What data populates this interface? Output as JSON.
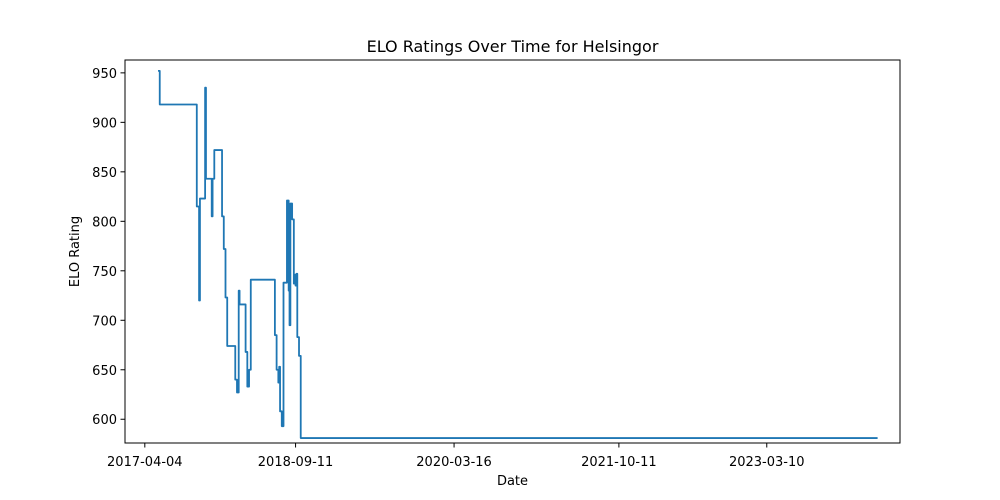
{
  "chart_data": {
    "type": "line",
    "title": "ELO Ratings Over Time for Helsingor",
    "xlabel": "Date",
    "ylabel": "ELO Rating",
    "x_ticks": [
      "2017-04-04",
      "2018-09-11",
      "2020-03-16",
      "2021-10-11",
      "2023-03-10"
    ],
    "y_ticks": [
      600,
      650,
      700,
      750,
      800,
      850,
      900,
      950
    ],
    "xlim": [
      "2017-01-25",
      "2024-06-16"
    ],
    "ylim": [
      576,
      963
    ],
    "grid": false,
    "series": [
      {
        "color": "#1f77b4",
        "points": [
          [
            "2017-05-20",
            952
          ],
          [
            "2017-05-26",
            952
          ],
          [
            "2017-05-26",
            918
          ],
          [
            "2017-10-02",
            918
          ],
          [
            "2017-10-02",
            815
          ],
          [
            "2017-10-10",
            815
          ],
          [
            "2017-10-10",
            720
          ],
          [
            "2017-10-13",
            720
          ],
          [
            "2017-10-13",
            823
          ],
          [
            "2017-10-31",
            823
          ],
          [
            "2017-10-31",
            935
          ],
          [
            "2017-11-03",
            935
          ],
          [
            "2017-11-03",
            843
          ],
          [
            "2017-11-23",
            843
          ],
          [
            "2017-11-23",
            805
          ],
          [
            "2017-11-26",
            805
          ],
          [
            "2017-11-26",
            843
          ],
          [
            "2017-12-02",
            843
          ],
          [
            "2017-12-02",
            872
          ],
          [
            "2017-12-29",
            872
          ],
          [
            "2017-12-29",
            805
          ],
          [
            "2018-01-04",
            805
          ],
          [
            "2018-01-04",
            772
          ],
          [
            "2018-01-10",
            772
          ],
          [
            "2018-01-10",
            723
          ],
          [
            "2018-01-16",
            723
          ],
          [
            "2018-01-16",
            674
          ],
          [
            "2018-02-13",
            674
          ],
          [
            "2018-02-13",
            640
          ],
          [
            "2018-02-19",
            640
          ],
          [
            "2018-02-19",
            627
          ],
          [
            "2018-02-25",
            627
          ],
          [
            "2018-02-25",
            730
          ],
          [
            "2018-02-28",
            730
          ],
          [
            "2018-02-28",
            716
          ],
          [
            "2018-03-21",
            716
          ],
          [
            "2018-03-21",
            668
          ],
          [
            "2018-03-27",
            668
          ],
          [
            "2018-03-27",
            633
          ],
          [
            "2018-04-02",
            633
          ],
          [
            "2018-04-02",
            650
          ],
          [
            "2018-04-08",
            650
          ],
          [
            "2018-04-08",
            741
          ],
          [
            "2018-07-01",
            741
          ],
          [
            "2018-07-01",
            685
          ],
          [
            "2018-07-07",
            685
          ],
          [
            "2018-07-07",
            650
          ],
          [
            "2018-07-13",
            650
          ],
          [
            "2018-07-13",
            637
          ],
          [
            "2018-07-16",
            637
          ],
          [
            "2018-07-16",
            653
          ],
          [
            "2018-07-19",
            653
          ],
          [
            "2018-07-19",
            608
          ],
          [
            "2018-07-25",
            608
          ],
          [
            "2018-07-25",
            593
          ],
          [
            "2018-07-31",
            593
          ],
          [
            "2018-07-31",
            738
          ],
          [
            "2018-08-12",
            738
          ],
          [
            "2018-08-12",
            821
          ],
          [
            "2018-08-18",
            821
          ],
          [
            "2018-08-18",
            730
          ],
          [
            "2018-08-21",
            730
          ],
          [
            "2018-08-21",
            695
          ],
          [
            "2018-08-24",
            695
          ],
          [
            "2018-08-24",
            818
          ],
          [
            "2018-08-30",
            818
          ],
          [
            "2018-08-30",
            802
          ],
          [
            "2018-09-05",
            802
          ],
          [
            "2018-09-05",
            737
          ],
          [
            "2018-09-08",
            737
          ],
          [
            "2018-09-08",
            746
          ],
          [
            "2018-09-11",
            746
          ],
          [
            "2018-09-11",
            735
          ],
          [
            "2018-09-14",
            735
          ],
          [
            "2018-09-14",
            747
          ],
          [
            "2018-09-17",
            747
          ],
          [
            "2018-09-17",
            683
          ],
          [
            "2018-09-23",
            683
          ],
          [
            "2018-09-23",
            664
          ],
          [
            "2018-09-29",
            664
          ],
          [
            "2018-09-29",
            581
          ],
          [
            "2024-03-30",
            581
          ]
        ]
      }
    ]
  }
}
